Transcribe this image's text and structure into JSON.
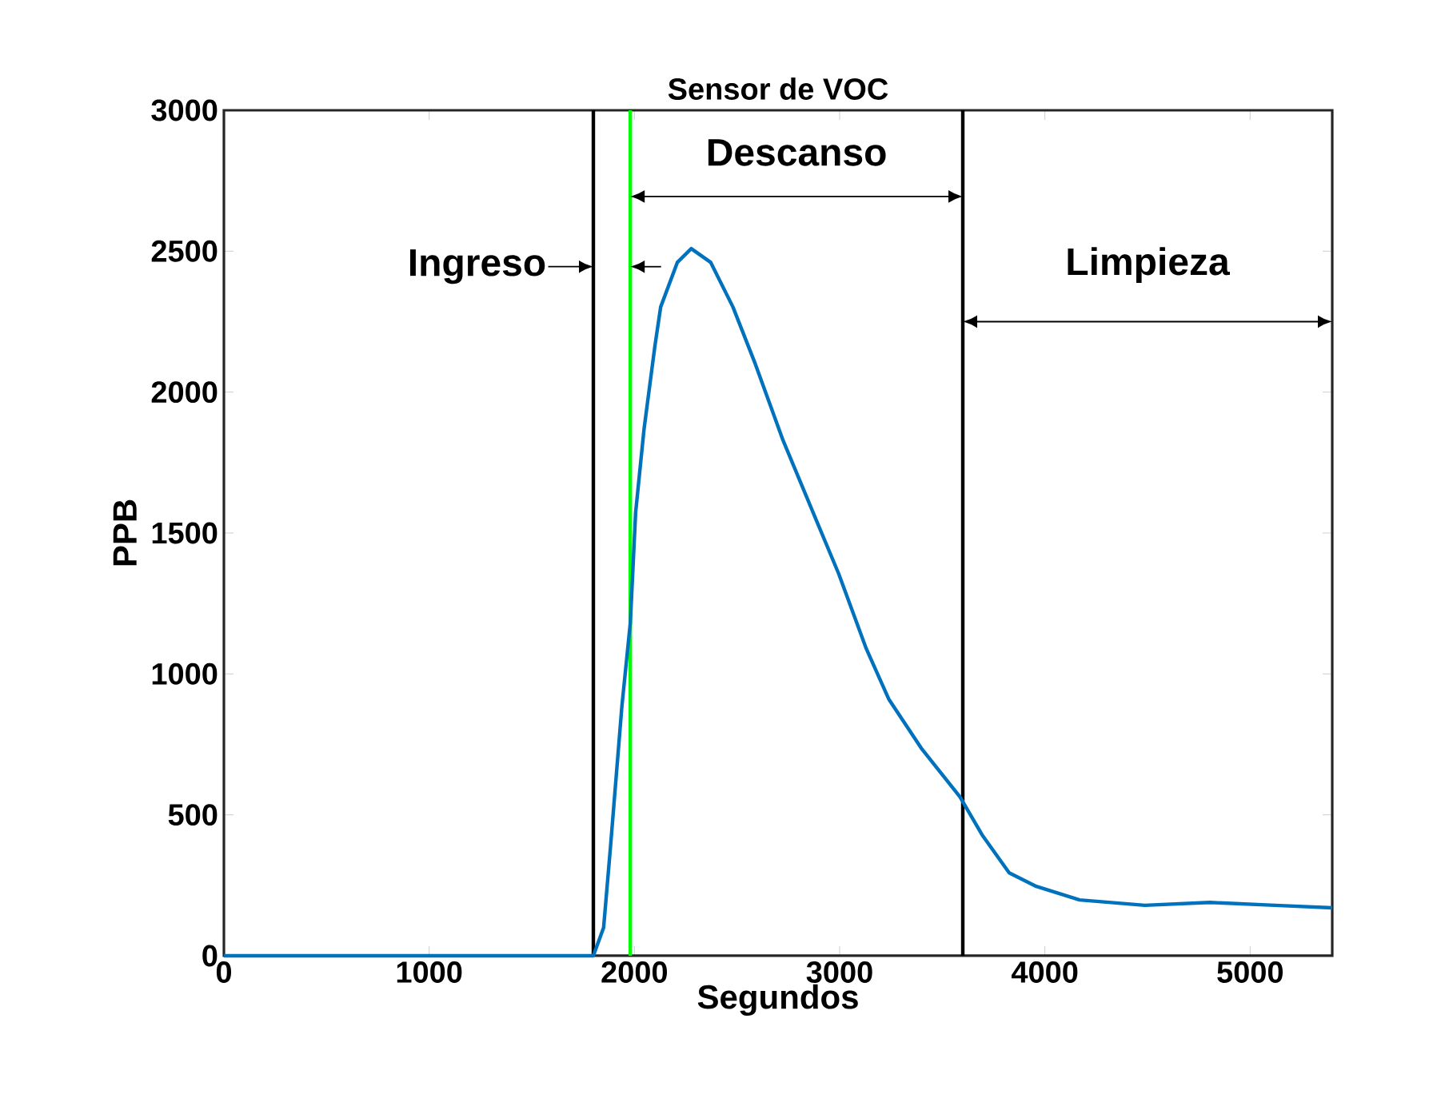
{
  "chart_data": {
    "type": "line",
    "title": "Sensor de VOC",
    "xlabel": "Segundos",
    "ylabel": "PPB",
    "xlim": [
      0,
      5400
    ],
    "ylim": [
      0,
      3000
    ],
    "xticks": [
      0,
      1000,
      2000,
      3000,
      4000,
      5000
    ],
    "yticks": [
      0,
      500,
      1000,
      1500,
      2000,
      2500,
      3000
    ],
    "grid": false,
    "marker": "none",
    "line_style": "solid",
    "series": [
      {
        "color": "#0072bd",
        "x": [
          0,
          500,
          1000,
          1500,
          1800,
          1850,
          1884,
          1939,
          1980,
          2006,
          2047,
          2100,
          2128,
          2209,
          2277,
          2372,
          2480,
          2589,
          2724,
          2859,
          2995,
          3130,
          3239,
          3401,
          3586,
          3694,
          3826,
          3958,
          4169,
          4487,
          4804,
          5121,
          5400
        ],
        "values": [
          0,
          0,
          0,
          0,
          0,
          100,
          391,
          885,
          1180,
          1573,
          1869,
          2164,
          2302,
          2460,
          2509,
          2460,
          2302,
          2100,
          1829,
          1593,
          1356,
          1089,
          911,
          733,
          564,
          429,
          294,
          246,
          198,
          179,
          189,
          179,
          170
        ]
      }
    ],
    "ref_lines": [
      {
        "axis": "x",
        "value": 1800,
        "color": "#000000"
      },
      {
        "axis": "x",
        "value": 1980,
        "color": "#00ff00"
      },
      {
        "axis": "x",
        "value": 3600,
        "color": "#000000"
      }
    ],
    "annotations": [
      "Ingreso",
      "Descanso",
      "Limpieza"
    ]
  }
}
